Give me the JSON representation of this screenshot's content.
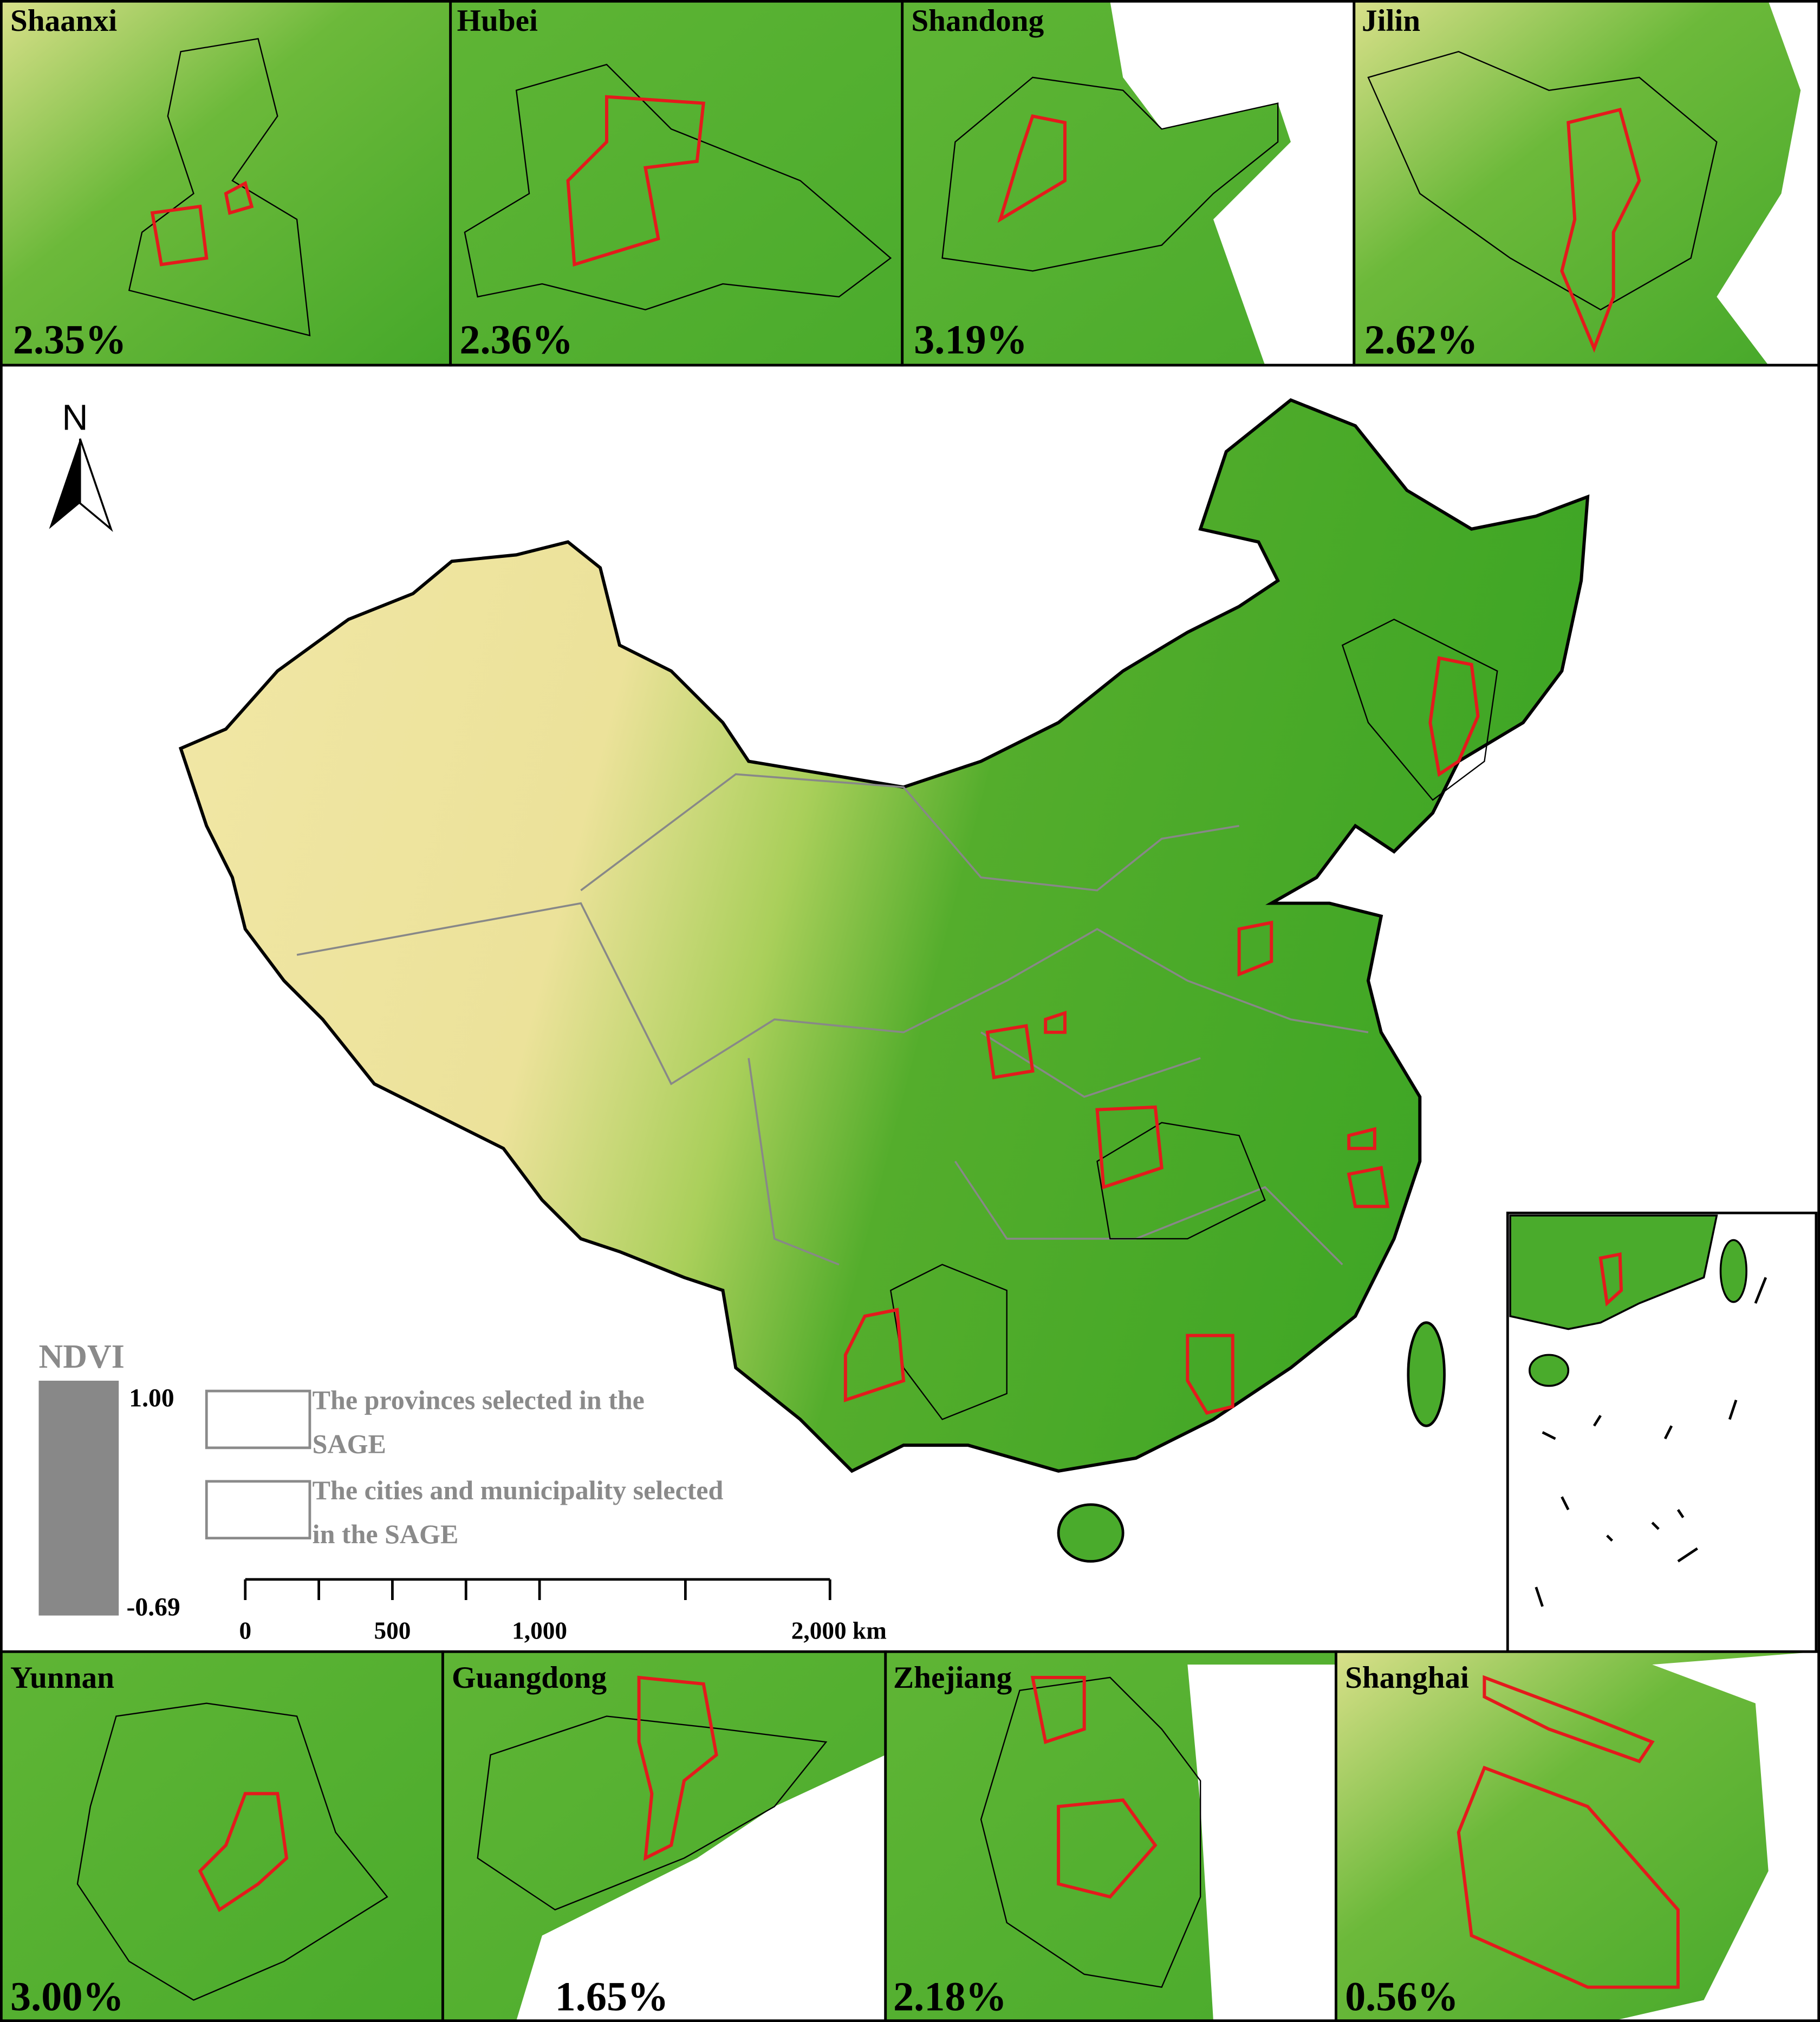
{
  "panels_top": [
    {
      "name": "Shaanxi",
      "percent": "2.35%"
    },
    {
      "name": "Hubei",
      "percent": "2.36%"
    },
    {
      "name": "Shandong",
      "percent": "3.19%"
    },
    {
      "name": "Jilin",
      "percent": "2.62%"
    }
  ],
  "panels_bottom": [
    {
      "name": "Yunnan",
      "percent": "3.00%"
    },
    {
      "name": "Guangdong",
      "percent": "1.65%"
    },
    {
      "name": "Zhejiang",
      "percent": "2.18%"
    },
    {
      "name": "Shanghai",
      "percent": "0.56%"
    }
  ],
  "main_map": {
    "north": "N",
    "legend": {
      "title": "NDVI",
      "max": "1.00",
      "min": "-0.69",
      "items": [
        {
          "lines": [
            "The provinces selected in the",
            "SAGE"
          ]
        },
        {
          "lines": [
            "The cities and municipality selected",
            "in the SAGE"
          ]
        }
      ]
    },
    "scale_bar": {
      "labels": [
        "0",
        "500",
        "1,000",
        "2,000 km"
      ]
    }
  }
}
